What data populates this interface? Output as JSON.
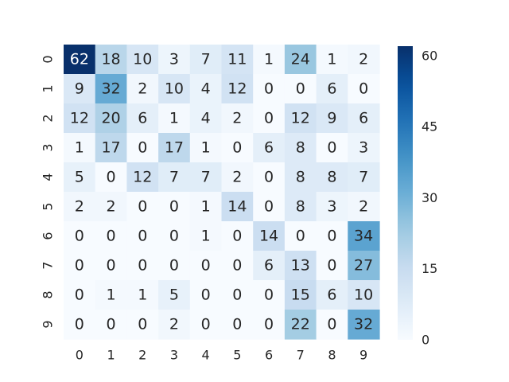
{
  "chart_data": {
    "type": "heatmap",
    "title": "",
    "xlabel": "",
    "ylabel": "",
    "x_labels": [
      "0",
      "1",
      "2",
      "3",
      "4",
      "5",
      "6",
      "7",
      "8",
      "9"
    ],
    "y_labels": [
      "0",
      "1",
      "2",
      "3",
      "4",
      "5",
      "6",
      "7",
      "8",
      "9"
    ],
    "values": [
      [
        62,
        18,
        10,
        3,
        7,
        11,
        1,
        24,
        1,
        2
      ],
      [
        9,
        32,
        2,
        10,
        4,
        12,
        0,
        0,
        6,
        0
      ],
      [
        12,
        20,
        6,
        1,
        4,
        2,
        0,
        12,
        9,
        6
      ],
      [
        1,
        17,
        0,
        17,
        1,
        0,
        6,
        8,
        0,
        3
      ],
      [
        5,
        0,
        12,
        7,
        7,
        2,
        0,
        8,
        8,
        7
      ],
      [
        2,
        2,
        0,
        0,
        1,
        14,
        0,
        8,
        3,
        2
      ],
      [
        0,
        0,
        0,
        0,
        1,
        0,
        14,
        0,
        0,
        34
      ],
      [
        0,
        0,
        0,
        0,
        0,
        0,
        6,
        13,
        0,
        27
      ],
      [
        0,
        1,
        1,
        5,
        0,
        0,
        0,
        15,
        6,
        10
      ],
      [
        0,
        0,
        0,
        2,
        0,
        0,
        0,
        22,
        0,
        32
      ]
    ],
    "colormap": "Blues",
    "vmin": 0,
    "vmax": 62,
    "colorbar_ticks": [
      0,
      15,
      30,
      45,
      60
    ],
    "annotations": true,
    "grid": false
  }
}
